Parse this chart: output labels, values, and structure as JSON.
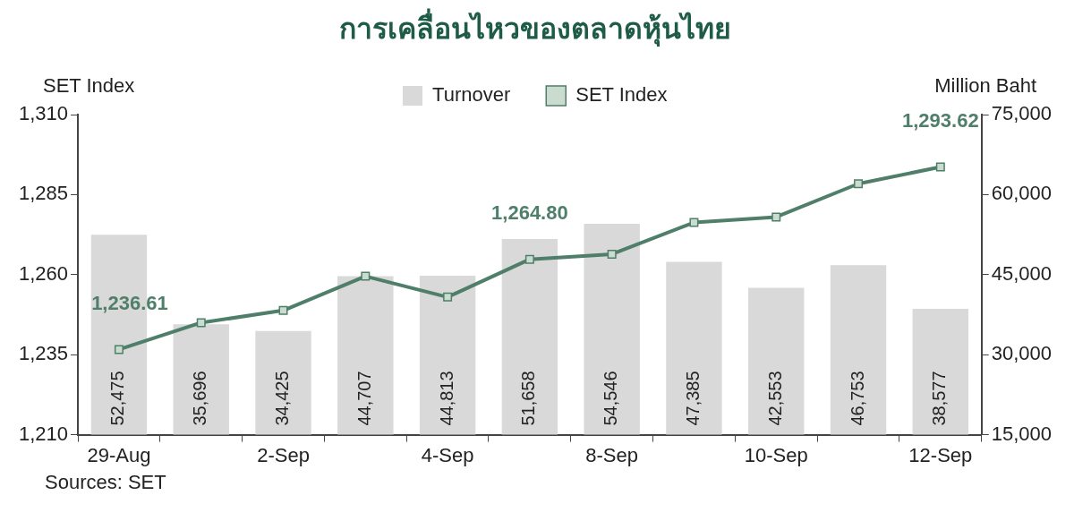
{
  "chart_data": {
    "type": "bar",
    "title": "การเคลื่อนไหวของตลาดหุ้นไทย",
    "ylabel": "SET Index",
    "y2label": "Million Baht",
    "categories": [
      "29-Aug",
      null,
      "2-Sep",
      null,
      "4-Sep",
      null,
      "8-Sep",
      null,
      "10-Sep",
      null,
      "12-Sep"
    ],
    "series": [
      {
        "name": "Turnover",
        "axis": "y2",
        "color": "#d9d9d9",
        "values": [
          52475,
          35696,
          34425,
          44707,
          44813,
          51658,
          54546,
          47385,
          42553,
          46753,
          38577
        ],
        "value_labels": [
          "52,475",
          "35,696",
          "34,425",
          "44,707",
          "44,813",
          "51,658",
          "54,546",
          "47,385",
          "42,553",
          "46,753",
          "38,577"
        ]
      },
      {
        "name": "SET Index",
        "type": "line",
        "axis": "y",
        "color": "#4f7f6a",
        "values": [
          1236.61,
          1245.0,
          1248.8,
          1259.5,
          1253.0,
          1264.8,
          1266.4,
          1276.3,
          1278.0,
          1288.4,
          1293.62
        ],
        "value_labels": [
          "1,236.61",
          null,
          null,
          null,
          null,
          "1,264.80",
          null,
          null,
          null,
          null,
          "1,293.62"
        ]
      }
    ],
    "ylim": [
      1210,
      1310
    ],
    "yticks": [
      {
        "value": 1210,
        "label": "1,210"
      },
      {
        "value": 1235,
        "label": "1,235"
      },
      {
        "value": 1260,
        "label": "1,260"
      },
      {
        "value": 1285,
        "label": "1,285"
      },
      {
        "value": 1310,
        "label": "1,310"
      }
    ],
    "y2lim": [
      15000,
      75000
    ],
    "y2ticks": [
      {
        "value": 15000,
        "label": "15,000"
      },
      {
        "value": 30000,
        "label": "30,000"
      },
      {
        "value": 45000,
        "label": "45,000"
      },
      {
        "value": 60000,
        "label": "60,000"
      },
      {
        "value": 75000,
        "label": "75,000"
      }
    ],
    "legend": "top",
    "marker": "square",
    "line_style": "solid",
    "annotations": [
      "Sources: SET"
    ]
  }
}
